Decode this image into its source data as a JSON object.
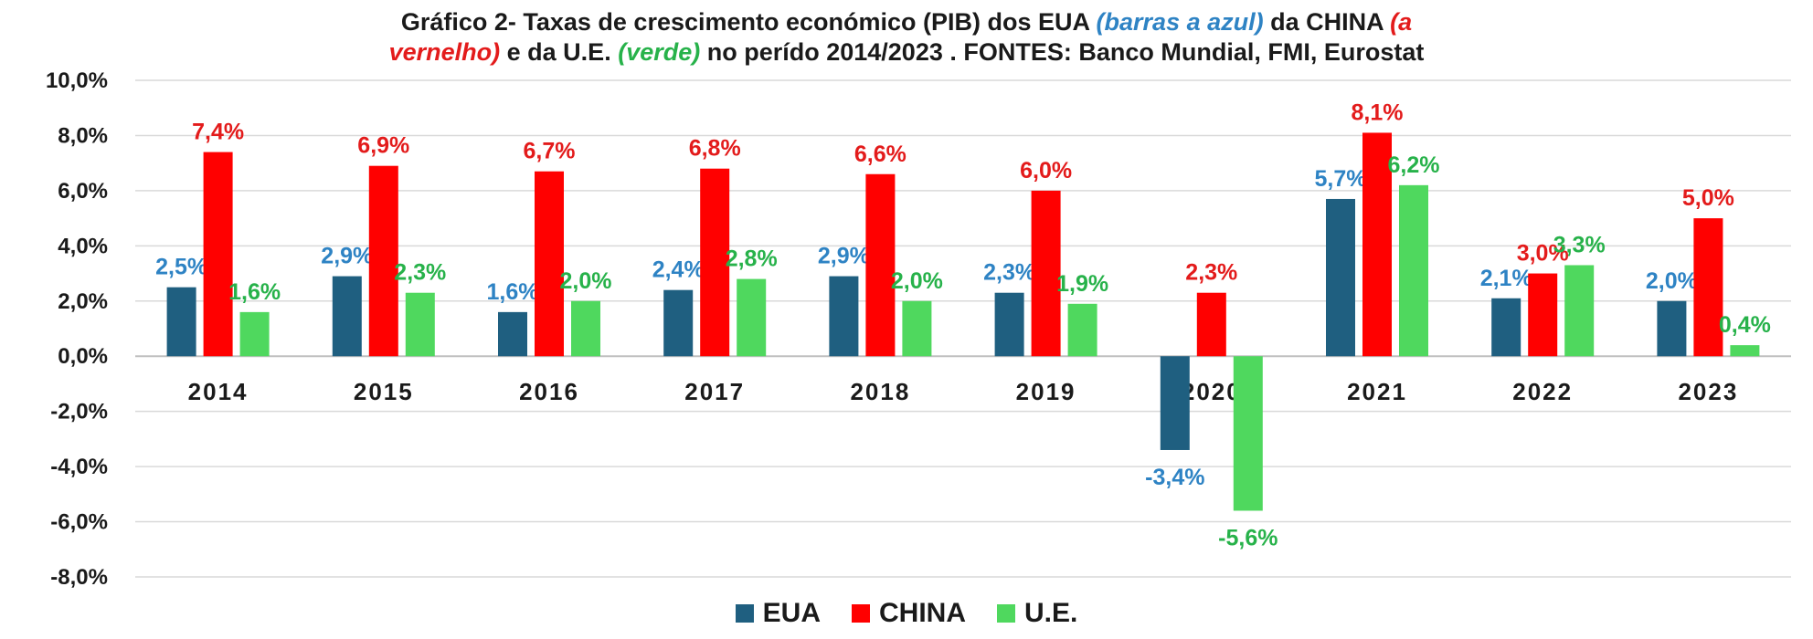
{
  "chart_data": {
    "type": "bar",
    "title_parts": [
      {
        "text": "Gráfico 2- Taxas de crescimento económico (PIB) dos EUA ",
        "style": "plain"
      },
      {
        "text": "(barras a azul)",
        "style": "blue"
      },
      {
        "text": " da CHINA ",
        "style": "plain"
      },
      {
        "text": "(a",
        "style": "red"
      }
    ],
    "title_parts_line2": [
      {
        "text": "vernelho)",
        "style": "red"
      },
      {
        "text": " e da U.E. ",
        "style": "plain"
      },
      {
        "text": "(verde)",
        "style": "green"
      },
      {
        "text": " no perído 2014/2023 . FONTES: Banco Mundial, FMI, Eurostat",
        "style": "plain"
      }
    ],
    "categories": [
      "2014",
      "2015",
      "2016",
      "2017",
      "2018",
      "2019",
      "2020",
      "2021",
      "2022",
      "2023"
    ],
    "series": [
      {
        "name": "EUA",
        "color": "#1f5f80",
        "label_color": "#2e83c4",
        "values": [
          2.5,
          2.9,
          1.6,
          2.4,
          2.9,
          2.3,
          -3.4,
          5.7,
          2.1,
          2.0
        ],
        "labels": [
          "2,5%",
          "2,9%",
          "1,6%",
          "2,4%",
          "2,9%",
          "2,3%",
          "-3,4%",
          "5,7%",
          "2,1%",
          "2,0%"
        ]
      },
      {
        "name": "CHINA",
        "color": "#ff0000",
        "label_color": "#e31b1b",
        "values": [
          7.4,
          6.9,
          6.7,
          6.8,
          6.6,
          6.0,
          2.3,
          8.1,
          3.0,
          5.0
        ],
        "labels": [
          "7,4%",
          "6,9%",
          "6,7%",
          "6,8%",
          "6,6%",
          "6,0%",
          "2,3%",
          "8,1%",
          "3,0%",
          "5,0%"
        ]
      },
      {
        "name": "U.E.",
        "color": "#4fd85e",
        "label_color": "#27b24a",
        "values": [
          1.6,
          2.3,
          2.0,
          2.8,
          2.0,
          1.9,
          -5.6,
          6.2,
          3.3,
          0.4
        ],
        "labels": [
          "1,6%",
          "2,3%",
          "2,0%",
          "2,8%",
          "2,0%",
          "1,9%",
          "-5,6%",
          "6,2%",
          "3,3%",
          "0,4%"
        ]
      }
    ],
    "ylim": [
      -8,
      10
    ],
    "yticks": [
      10,
      8,
      6,
      4,
      2,
      0,
      -2,
      -4,
      -6,
      -8
    ],
    "ytick_labels": [
      "10,0%",
      "8,0%",
      "6,0%",
      "4,0%",
      "2,0%",
      "0,0%",
      "-2,0%",
      "-4,0%",
      "-6,0%",
      "-8,0%"
    ],
    "grid": true,
    "legend_position": "bottom",
    "xlabel": "",
    "ylabel": ""
  }
}
